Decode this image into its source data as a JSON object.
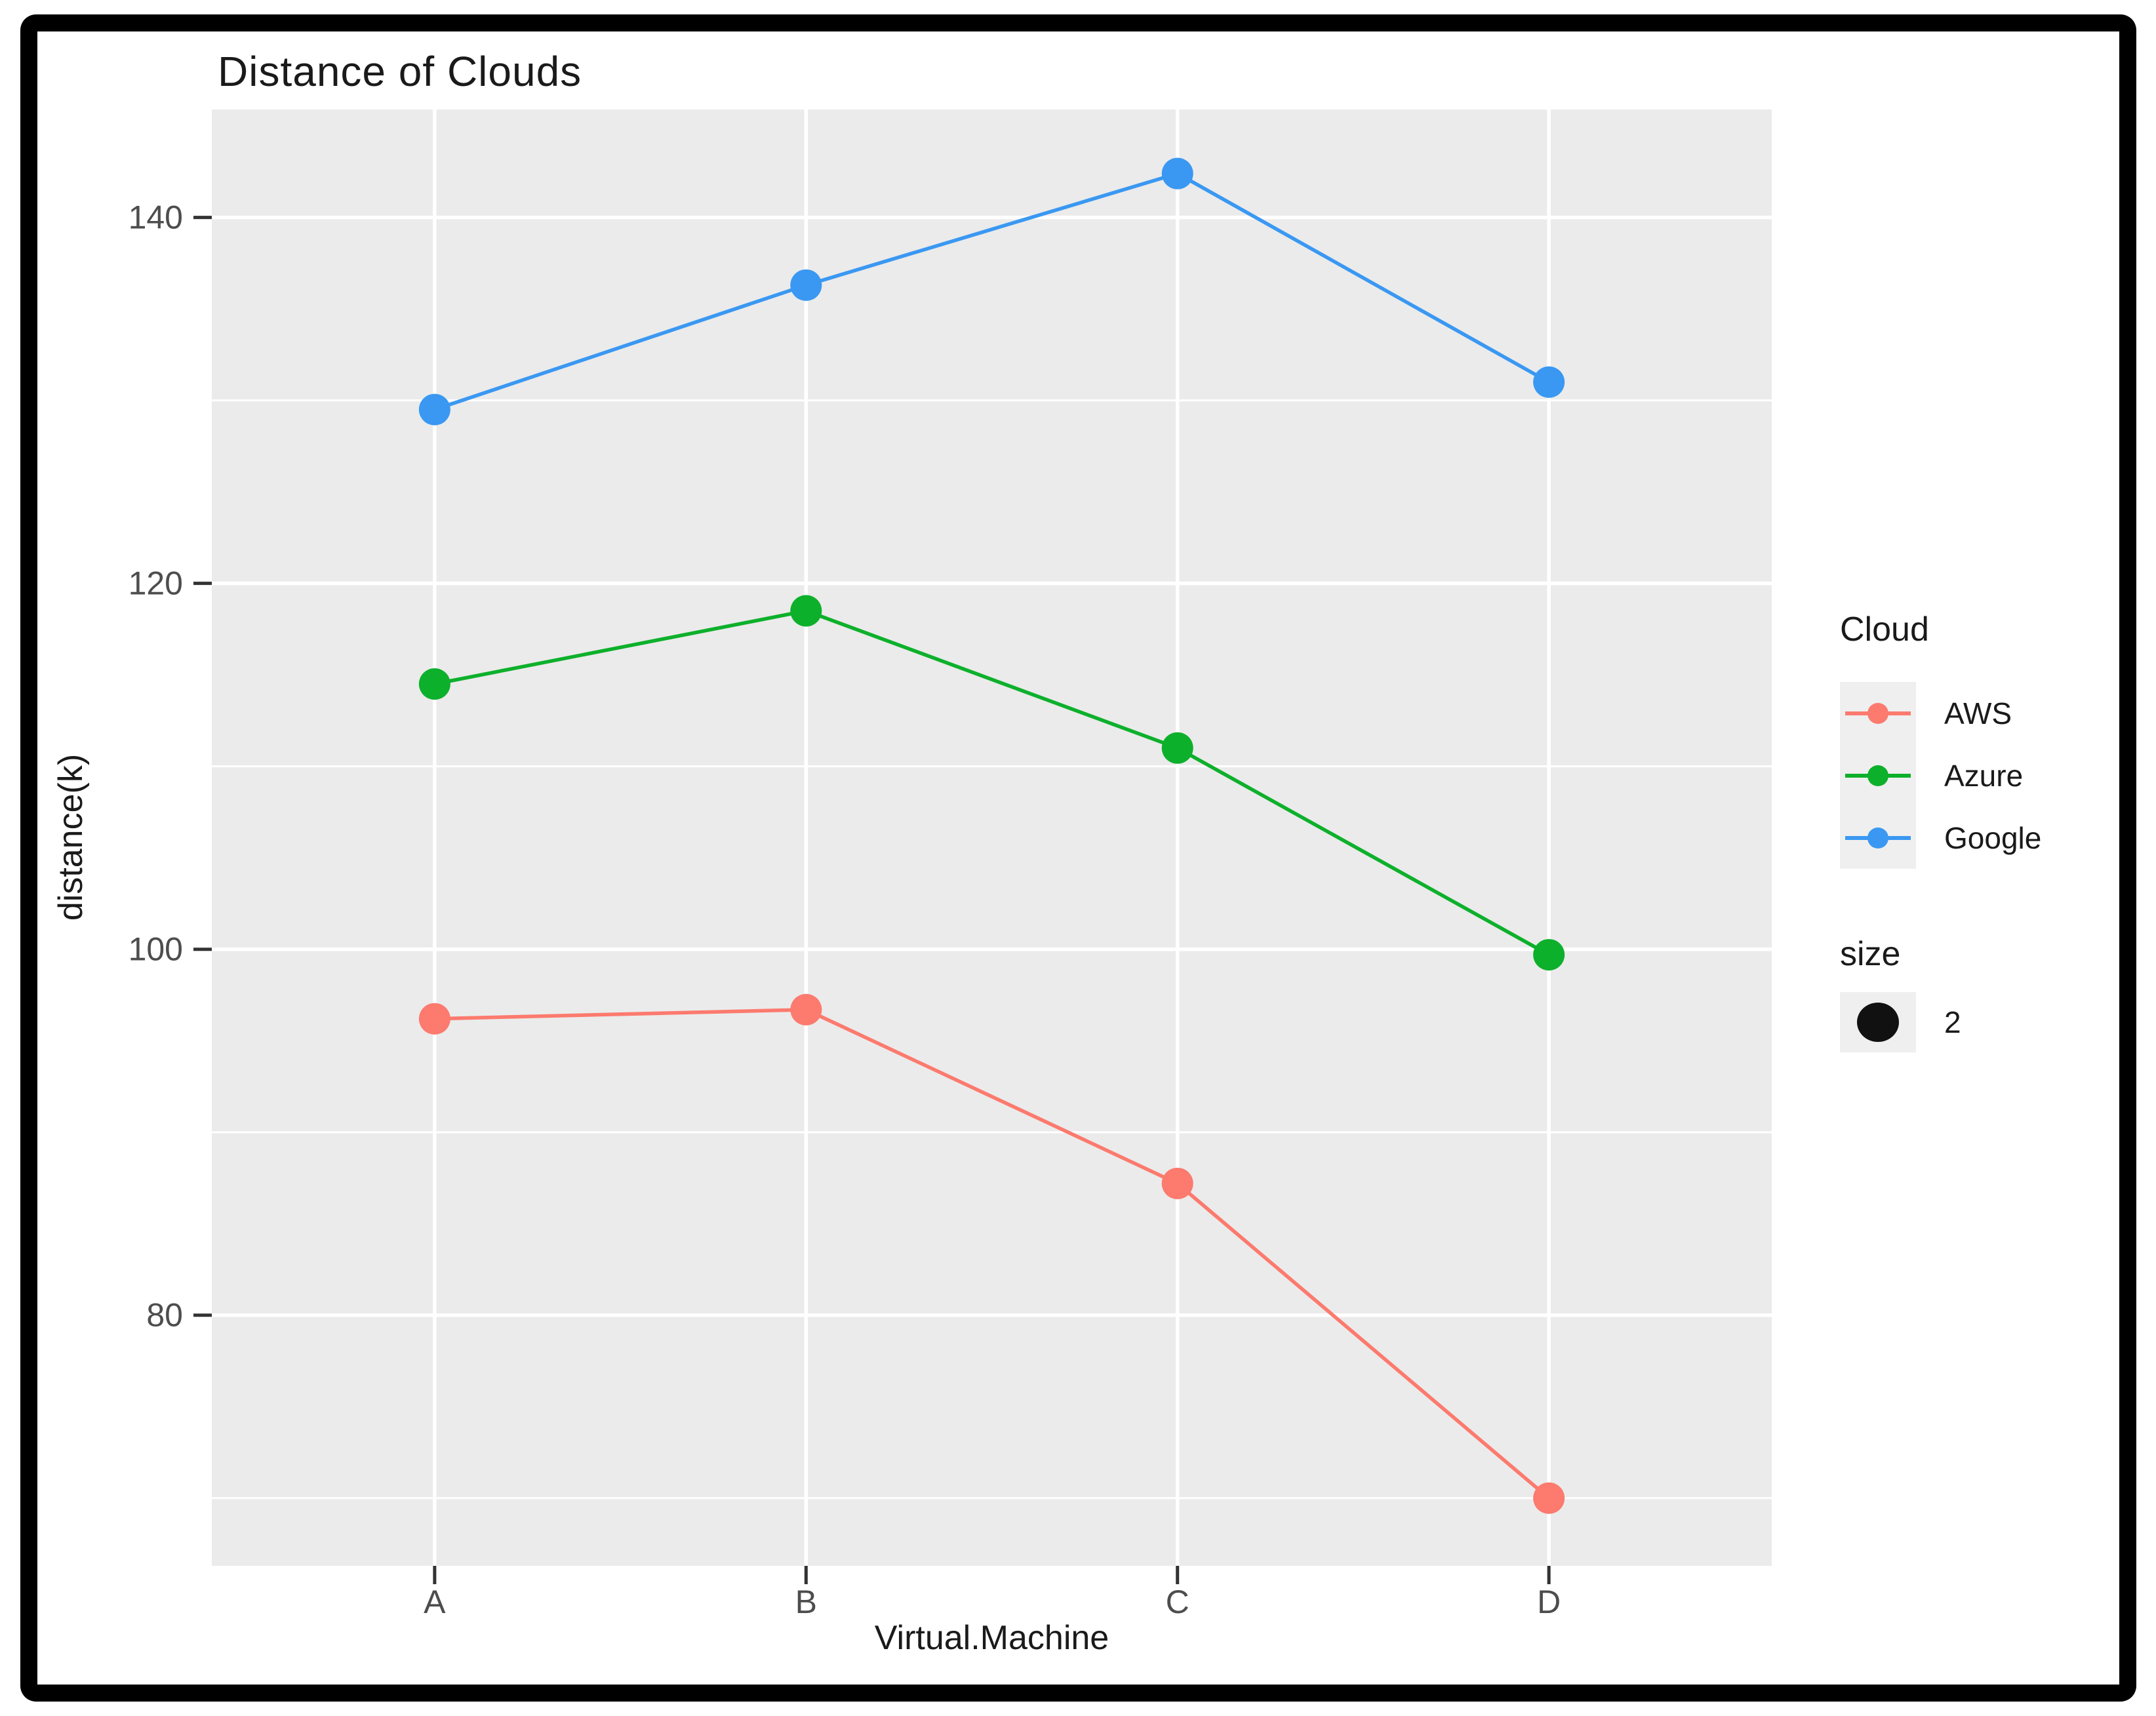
{
  "chart_data": {
    "type": "line",
    "title": "Distance of Clouds",
    "xlabel": "Virtual.Machine",
    "ylabel": "distance(k)",
    "categories": [
      "A",
      "B",
      "C",
      "D"
    ],
    "series": [
      {
        "name": "AWS",
        "color": "#FC7A6E",
        "values": [
          96.2,
          96.7,
          87.2,
          70.0
        ]
      },
      {
        "name": "Azure",
        "color": "#0DB02B",
        "values": [
          114.5,
          118.5,
          111.0,
          99.7
        ]
      },
      {
        "name": "Google",
        "color": "#3A98F2",
        "values": [
          129.5,
          136.3,
          142.4,
          131.0
        ]
      }
    ],
    "y_ticks": [
      80,
      100,
      120,
      140
    ],
    "y_minor_ticks": [
      70,
      90,
      110,
      130
    ],
    "ylim": [
      66.3,
      145.9
    ],
    "grid": "white major+minor horizontal lines, white vertical lines at categories, on gray panel",
    "legend_position": "right",
    "panel_color": "#EBEBEB",
    "legend": {
      "cloud_title": "Cloud",
      "items": [
        "AWS",
        "Azure",
        "Google"
      ],
      "size_title": "size",
      "size_value": "2"
    }
  }
}
